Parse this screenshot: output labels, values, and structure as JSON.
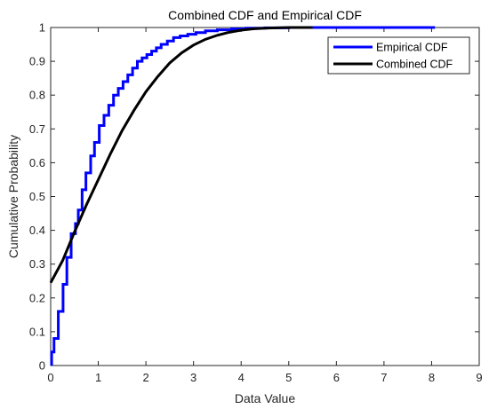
{
  "chart_data": {
    "type": "line",
    "title": "Combined CDF and Empirical CDF",
    "xlabel": "Data Value",
    "ylabel": "Cumulative Probability",
    "xlim": [
      0,
      9
    ],
    "ylim": [
      0,
      1
    ],
    "xticks": [
      0,
      1,
      2,
      3,
      4,
      5,
      6,
      7,
      8,
      9
    ],
    "yticks": [
      0,
      0.1,
      0.2,
      0.3,
      0.4,
      0.5,
      0.6,
      0.7,
      0.8,
      0.9,
      1
    ],
    "xtick_labels": [
      "0",
      "1",
      "2",
      "3",
      "4",
      "5",
      "6",
      "7",
      "8",
      "9"
    ],
    "ytick_labels": [
      "0",
      "0.1",
      "0.2",
      "0.3",
      "0.4",
      "0.5",
      "0.6",
      "0.7",
      "0.8",
      "0.9",
      "1"
    ],
    "grid": false,
    "legend_position": "top-right",
    "series": [
      {
        "name": "Empirical CDF",
        "color": "#0000ff",
        "step": true,
        "x": [
          0.02,
          0.07,
          0.16,
          0.26,
          0.34,
          0.43,
          0.52,
          0.58,
          0.66,
          0.74,
          0.84,
          0.92,
          1.02,
          1.12,
          1.22,
          1.32,
          1.42,
          1.52,
          1.62,
          1.72,
          1.82,
          1.92,
          2.02,
          2.12,
          2.22,
          2.32,
          2.45,
          2.58,
          2.72,
          2.88,
          3.05,
          3.25,
          3.5,
          3.8,
          4.1,
          4.5,
          5.0,
          8.07
        ],
        "y": [
          0.04,
          0.08,
          0.16,
          0.24,
          0.32,
          0.39,
          0.42,
          0.46,
          0.52,
          0.57,
          0.62,
          0.66,
          0.71,
          0.74,
          0.77,
          0.8,
          0.82,
          0.84,
          0.86,
          0.88,
          0.9,
          0.91,
          0.92,
          0.93,
          0.94,
          0.95,
          0.96,
          0.97,
          0.975,
          0.98,
          0.985,
          0.99,
          0.993,
          0.996,
          0.998,
          0.999,
          1.0,
          1.0
        ]
      },
      {
        "name": "Combined CDF",
        "color": "#000000",
        "step": false,
        "x": [
          0.0,
          0.25,
          0.5,
          0.75,
          1.0,
          1.25,
          1.5,
          1.75,
          2.0,
          2.25,
          2.5,
          2.75,
          3.0,
          3.25,
          3.5,
          3.75,
          4.0,
          4.25,
          4.5,
          5.0,
          5.5
        ],
        "y": [
          0.245,
          0.31,
          0.395,
          0.475,
          0.55,
          0.625,
          0.695,
          0.755,
          0.81,
          0.855,
          0.895,
          0.925,
          0.948,
          0.965,
          0.977,
          0.986,
          0.992,
          0.996,
          0.998,
          1.0,
          1.0
        ]
      }
    ]
  }
}
